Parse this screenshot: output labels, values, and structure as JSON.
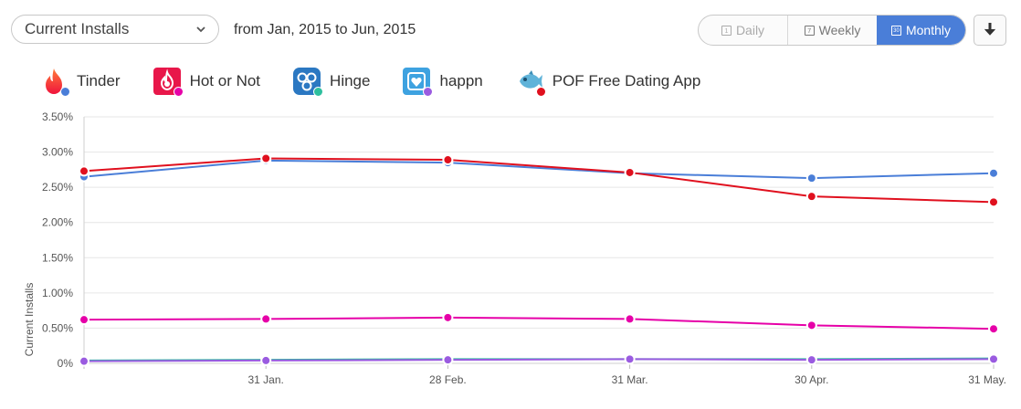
{
  "header": {
    "metric_select": {
      "value": "Current Installs"
    },
    "date_range": "from Jan, 2015 to Jun, 2015",
    "period_tabs": [
      {
        "label": "Daily",
        "icon_label": "1",
        "active": false
      },
      {
        "label": "Weekly",
        "icon_label": "7",
        "active": false
      },
      {
        "label": "Monthly",
        "icon_label": "30",
        "active": true
      }
    ]
  },
  "chart_data": {
    "type": "line",
    "ylabel": "Current Installs",
    "xlabel": "",
    "ylim": [
      0,
      3.5
    ],
    "yticks": [
      "3.50%",
      "3.00%",
      "2.50%",
      "2.00%",
      "1.50%",
      "1.00%",
      "0.50%",
      "0%"
    ],
    "yticks_values": [
      3.5,
      3.0,
      2.5,
      2.0,
      1.5,
      1.0,
      0.5,
      0
    ],
    "categories": [
      "",
      "31 Jan.",
      "28 Feb.",
      "31 Mar.",
      "30 Apr.",
      "31 May."
    ],
    "grid": true,
    "legend_position": "top",
    "series": [
      {
        "name": "Tinder",
        "color": "#4a7ed8",
        "icon": "tinder-flame-icon",
        "values": [
          2.65,
          2.88,
          2.85,
          2.7,
          2.63,
          2.7
        ]
      },
      {
        "name": "Hot or Not",
        "color": "#e600a8",
        "icon": "hot-or-not-icon",
        "values": [
          0.62,
          0.63,
          0.65,
          0.63,
          0.54,
          0.49
        ]
      },
      {
        "name": "Hinge",
        "color": "#2ebf9e",
        "icon": "hinge-icon",
        "values": [
          0.04,
          0.05,
          0.06,
          0.06,
          0.06,
          0.07
        ]
      },
      {
        "name": "happn",
        "color": "#9a5be0",
        "icon": "happn-icon",
        "values": [
          0.03,
          0.04,
          0.05,
          0.06,
          0.05,
          0.06
        ]
      },
      {
        "name": "POF Free Dating App",
        "color": "#e0101e",
        "icon": "pof-fish-icon",
        "values": [
          2.73,
          2.91,
          2.89,
          2.71,
          2.37,
          2.29
        ]
      }
    ]
  }
}
